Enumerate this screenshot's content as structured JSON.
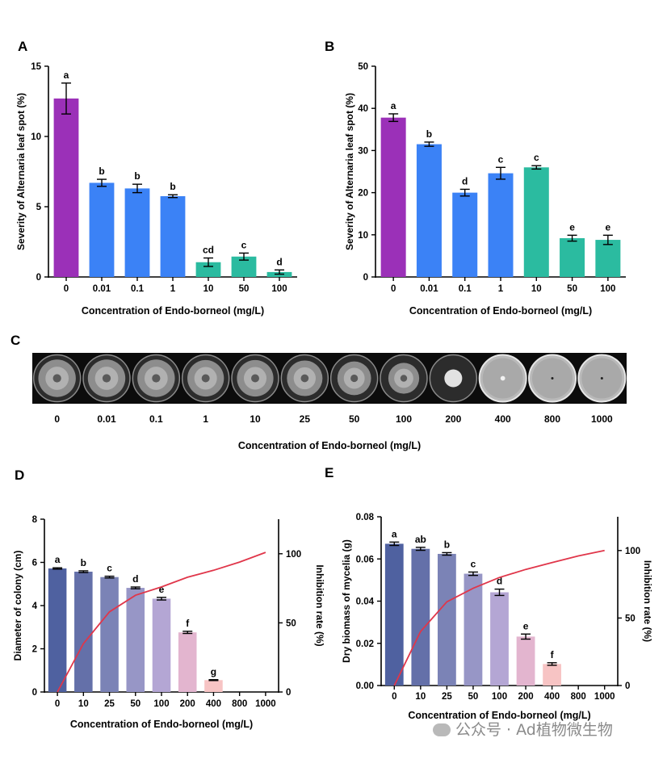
{
  "chart_data": [
    {
      "panel": "A",
      "type": "bar",
      "ylabel": "Severity of Alternaria leaf spot (%)",
      "xlabel": "Concentration of Endo-borneol (mg/L)",
      "categories": [
        "0",
        "0.01",
        "0.1",
        "1",
        "10",
        "50",
        "100"
      ],
      "values": [
        12.7,
        6.7,
        6.3,
        5.75,
        1.05,
        1.45,
        0.35
      ],
      "errors": [
        1.1,
        0.25,
        0.3,
        0.1,
        0.3,
        0.25,
        0.15
      ],
      "letters": [
        "a",
        "b",
        "b",
        "b",
        "cd",
        "c",
        "d"
      ],
      "colors": [
        "#9b30b8",
        "#3b82f6",
        "#3b82f6",
        "#3b82f6",
        "#2bbba0",
        "#2bbba0",
        "#2bbba0"
      ],
      "ylim": [
        0,
        15
      ],
      "yticks": [
        "0",
        "5",
        "10",
        "15"
      ]
    },
    {
      "panel": "B",
      "type": "bar",
      "ylabel": "Severity of Alternaria leaf spot (%)",
      "xlabel": "Concentration of Endo-borneol (mg/L)",
      "categories": [
        "0",
        "0.01",
        "0.1",
        "1",
        "10",
        "50",
        "100"
      ],
      "values": [
        37.8,
        31.5,
        20.0,
        24.6,
        26.0,
        9.2,
        8.8
      ],
      "errors": [
        0.9,
        0.5,
        0.8,
        1.4,
        0.4,
        0.7,
        1.1
      ],
      "letters": [
        "a",
        "b",
        "d",
        "c",
        "c",
        "e",
        "e"
      ],
      "colors": [
        "#9b30b8",
        "#3b82f6",
        "#3b82f6",
        "#3b82f6",
        "#2bbba0",
        "#2bbba0",
        "#2bbba0"
      ],
      "ylim": [
        0,
        50
      ],
      "yticks": [
        "0",
        "10",
        "20",
        "30",
        "40",
        "50"
      ]
    },
    {
      "panel": "D",
      "type": "bar",
      "ylabel": "Diameter of colony (cm)",
      "y2label": "Inhibition rate (%)",
      "xlabel": "Concentration of Endo-borneol (mg/L)",
      "categories": [
        "0",
        "10",
        "25",
        "50",
        "100",
        "200",
        "400",
        "800",
        "1000"
      ],
      "values": [
        5.72,
        5.57,
        5.32,
        4.82,
        4.32,
        2.76,
        0.55,
        0,
        0
      ],
      "errors": [
        0.03,
        0.04,
        0.04,
        0.04,
        0.06,
        0.05,
        0.02,
        0,
        0
      ],
      "letters": [
        "a",
        "b",
        "c",
        "d",
        "e",
        "f",
        "g",
        "",
        ""
      ],
      "colors": [
        "#4f61a0",
        "#6470a9",
        "#7b83b6",
        "#9796c6",
        "#b4a6d4",
        "#e3b5cf",
        "#f7c4c4",
        "#f7c4c4",
        "#f7c4c4"
      ],
      "ylim": [
        0,
        8
      ],
      "yticks": [
        "0",
        "2",
        "4",
        "6",
        "8"
      ],
      "y2lim": [
        0,
        125
      ],
      "y2ticks": [
        "0",
        "50",
        "100"
      ],
      "line": {
        "x": [
          0,
          1,
          2,
          3,
          4,
          5,
          6,
          7,
          8
        ],
        "values": [
          0,
          35,
          58,
          70,
          76,
          83,
          88,
          94,
          101
        ],
        "color": "#e0364a"
      }
    },
    {
      "panel": "E",
      "type": "bar",
      "ylabel": "Dry biomass of mycelia (g)",
      "y2label": "Inhibition rate (%)",
      "xlabel": "Concentration of Endo-borneol (mg/L)",
      "categories": [
        "0",
        "10",
        "25",
        "50",
        "100",
        "200",
        "400",
        "800",
        "1000"
      ],
      "values": [
        0.0672,
        0.0648,
        0.0624,
        0.053,
        0.0442,
        0.0232,
        0.0102,
        0,
        0
      ],
      "errors": [
        0.0008,
        0.0007,
        0.0006,
        0.0008,
        0.0015,
        0.0012,
        0.0006,
        0,
        0
      ],
      "letters": [
        "a",
        "ab",
        "b",
        "c",
        "d",
        "e",
        "f",
        "",
        ""
      ],
      "colors": [
        "#4f61a0",
        "#6470a9",
        "#7b83b6",
        "#9796c6",
        "#b4a6d4",
        "#e3b5cf",
        "#f7c4c4",
        "#f7c4c4",
        "#f7c4c4"
      ],
      "ylim": [
        0,
        0.08
      ],
      "yticks": [
        "0.00",
        "0.02",
        "0.04",
        "0.06",
        "0.08"
      ],
      "y2lim": [
        0,
        125
      ],
      "y2ticks": [
        "0",
        "50",
        "100"
      ],
      "line": {
        "x": [
          0,
          1,
          2,
          3,
          4,
          5,
          6,
          7,
          8
        ],
        "values": [
          0,
          40,
          62,
          72,
          80,
          86,
          91,
          96,
          100
        ],
        "color": "#e0364a"
      }
    }
  ],
  "panel_c": {
    "letter": "C",
    "xlabel": "Concentration of Endo-borneol (mg/L)",
    "dishes": [
      {
        "label": "0",
        "kind": "colony",
        "size": 0.8
      },
      {
        "label": "0.01",
        "kind": "colony",
        "size": 0.8
      },
      {
        "label": "0.1",
        "kind": "colony",
        "size": 0.8
      },
      {
        "label": "1",
        "kind": "colony",
        "size": 0.78
      },
      {
        "label": "10",
        "kind": "colony",
        "size": 0.78
      },
      {
        "label": "25",
        "kind": "colony",
        "size": 0.76
      },
      {
        "label": "50",
        "kind": "colony",
        "size": 0.72
      },
      {
        "label": "100",
        "kind": "colony",
        "size": 0.66
      },
      {
        "label": "200",
        "kind": "small",
        "size": 0.38
      },
      {
        "label": "400",
        "kind": "plate",
        "size": 0.1
      },
      {
        "label": "800",
        "kind": "plate",
        "size": 0.04
      },
      {
        "label": "1000",
        "kind": "plate",
        "size": 0.04
      }
    ]
  },
  "panel_letters": [
    "A",
    "B",
    "C",
    "D",
    "E"
  ],
  "watermark": "公众号 · Ad植物微生物"
}
